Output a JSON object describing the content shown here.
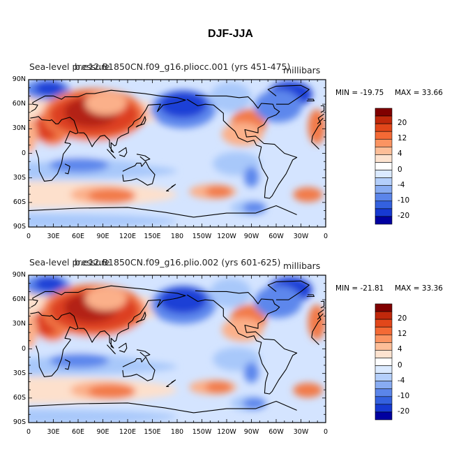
{
  "title": "DJF-JJA",
  "panels": [
    {
      "id": "p1",
      "name": "Sea-level pressure",
      "case": "b.e12.B1850CN.f09_g16.pliocc.001 (yrs 451-475)",
      "units": "millibars",
      "min_label": "MIN = -19.75",
      "max_label": "MAX =  33.66",
      "min": -19.75,
      "max": 33.66
    },
    {
      "id": "p2",
      "name": "Sea-level pressure",
      "case": "b.e12.B1850CN.f09_g16.plio.002 (yrs 601-625)",
      "units": "millibars",
      "min_label": "MIN = -21.81",
      "max_label": "MAX =  33.36",
      "min": -21.81,
      "max": 33.36
    }
  ],
  "lat_ticks": [
    "90N",
    "60N",
    "30N",
    "0",
    "30S",
    "60S",
    "90S"
  ],
  "lon_ticks": [
    "0",
    "30E",
    "60E",
    "90E",
    "120E",
    "150E",
    "180",
    "150W",
    "120W",
    "90W",
    "60W",
    "30W",
    "0"
  ],
  "colorbar": {
    "labels": [
      "20",
      "12",
      "4",
      "0",
      "-4",
      "-10",
      "-20"
    ],
    "colors_top_to_bottom": [
      "#800000",
      "#c0280b",
      "#e2471a",
      "#f46a35",
      "#fb9462",
      "#fdbe98",
      "#fde3d0",
      "#ffffff",
      "#dbeaff",
      "#b4cffb",
      "#88acf2",
      "#5b85ea",
      "#3461df",
      "#1639d2",
      "#0000a0"
    ]
  },
  "map_colors": {
    "strong_red": "#b32112",
    "red": "#dd4122",
    "orange": "#f27a48",
    "light_orange": "#fbb08a",
    "pale_orange": "#fde0cc",
    "pale_blue": "#d4e4ff",
    "light_blue": "#a8c8fa",
    "blue": "#5d87ec",
    "strong_blue": "#1a3fd6"
  }
}
